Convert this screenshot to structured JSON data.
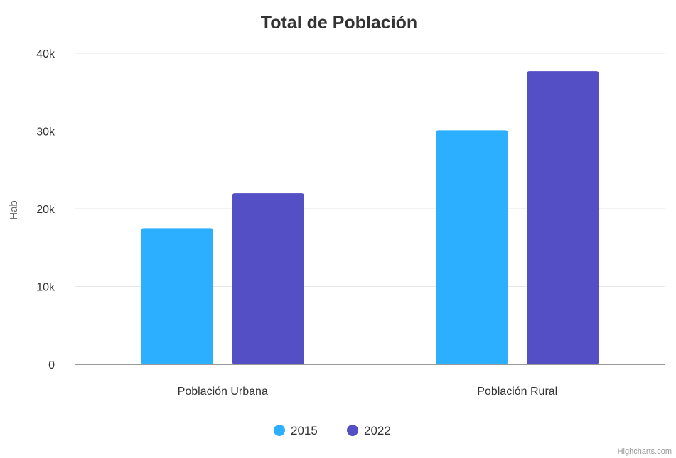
{
  "chart_data": {
    "type": "bar",
    "title": "Total de Población",
    "ylabel": "Hab",
    "xlabel": "",
    "categories": [
      "Población Urbana",
      "Población Rural"
    ],
    "series": [
      {
        "name": "2015",
        "values": [
          17500,
          30100
        ],
        "color": "#2caffe"
      },
      {
        "name": "2022",
        "values": [
          22000,
          37700
        ],
        "color": "#544fc5"
      }
    ],
    "ylim": [
      0,
      40000
    ],
    "yticks": [
      0,
      10000,
      20000,
      30000,
      40000
    ],
    "ytick_labels": [
      "0",
      "10k",
      "20k",
      "30k",
      "40k"
    ],
    "grid": true,
    "legend_position": "bottom-center"
  },
  "credits": "Highcharts.com",
  "colors": {
    "title": "#333333",
    "axis_text": "#333333",
    "axis_title": "#666666",
    "grid": "#e6e6e6",
    "axis_line": "#333333"
  }
}
